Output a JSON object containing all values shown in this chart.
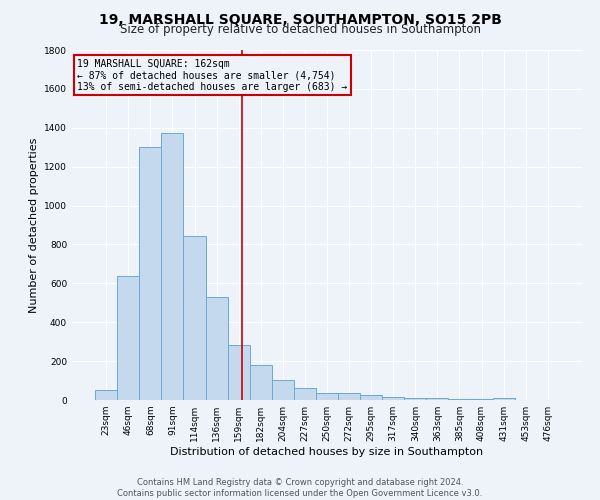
{
  "title": "19, MARSHALL SQUARE, SOUTHAMPTON, SO15 2PB",
  "subtitle": "Size of property relative to detached houses in Southampton",
  "xlabel": "Distribution of detached houses by size in Southampton",
  "ylabel": "Number of detached properties",
  "categories": [
    "23sqm",
    "46sqm",
    "68sqm",
    "91sqm",
    "114sqm",
    "136sqm",
    "159sqm",
    "182sqm",
    "204sqm",
    "227sqm",
    "250sqm",
    "272sqm",
    "295sqm",
    "317sqm",
    "340sqm",
    "363sqm",
    "385sqm",
    "408sqm",
    "431sqm",
    "453sqm",
    "476sqm"
  ],
  "values": [
    50,
    640,
    1300,
    1375,
    845,
    530,
    285,
    180,
    105,
    60,
    38,
    38,
    25,
    15,
    10,
    8,
    5,
    3,
    10,
    0,
    0
  ],
  "bar_color": "#c5d9ee",
  "bar_edge_color": "#6aaad4",
  "vline_x_index": 6.13,
  "vline_color": "#cc0000",
  "annotation_title": "19 MARSHALL SQUARE: 162sqm",
  "annotation_line1": "← 87% of detached houses are smaller (4,754)",
  "annotation_line2": "13% of semi-detached houses are larger (683) →",
  "annotation_box_edgecolor": "#cc0000",
  "ylim": [
    0,
    1800
  ],
  "yticks": [
    0,
    200,
    400,
    600,
    800,
    1000,
    1200,
    1400,
    1600,
    1800
  ],
  "footer_line1": "Contains HM Land Registry data © Crown copyright and database right 2024.",
  "footer_line2": "Contains public sector information licensed under the Open Government Licence v3.0.",
  "background_color": "#eef2f9",
  "grid_color": "#ffffff",
  "title_fontsize": 10,
  "subtitle_fontsize": 8.5,
  "ylabel_fontsize": 8,
  "xlabel_fontsize": 8,
  "tick_fontsize": 6.5,
  "annotation_fontsize": 7,
  "footer_fontsize": 6
}
